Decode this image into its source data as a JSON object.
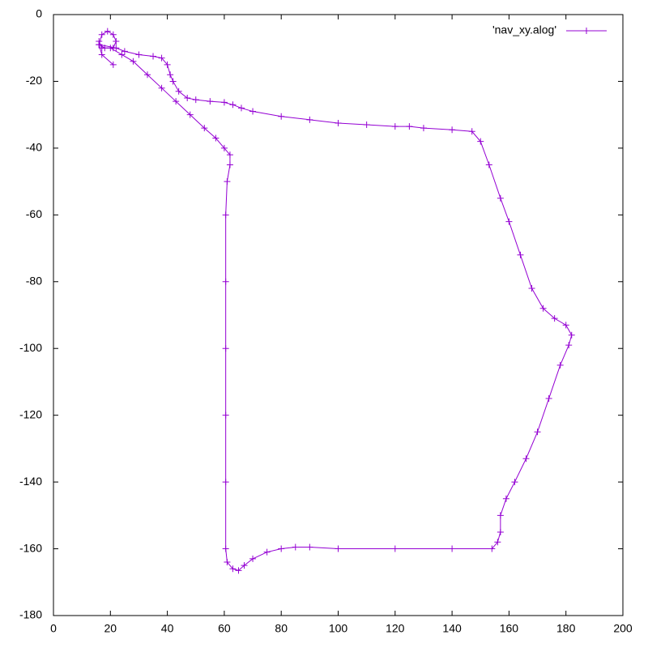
{
  "chart_data": {
    "type": "line",
    "x": [
      21,
      17,
      16,
      17,
      19,
      21,
      22,
      21,
      18,
      16,
      22,
      25,
      30,
      35,
      38,
      40,
      41,
      42,
      44,
      47,
      50,
      55,
      60,
      63,
      66,
      70,
      80,
      90,
      100,
      110,
      120,
      125,
      130,
      140,
      147,
      150,
      153,
      157,
      160,
      164,
      168,
      172,
      176,
      180,
      182,
      181,
      178,
      174,
      170,
      166,
      162,
      159,
      157,
      157,
      156,
      154,
      140,
      120,
      100,
      90,
      85,
      80,
      75,
      70,
      67,
      65,
      63,
      61,
      60.5,
      60.5,
      60.5,
      60.5,
      60.5,
      60.5,
      61,
      62,
      62,
      60,
      57,
      53,
      48,
      43,
      38,
      33,
      28,
      24,
      20,
      17,
      16
    ],
    "series": [
      {
        "name": "'nav_xy.alog'",
        "color": "#9400d3",
        "values": [
          -15,
          -12,
          -9,
          -6,
          -5,
          -6,
          -8,
          -10,
          -10,
          -9,
          -10,
          -11,
          -12,
          -12.5,
          -13,
          -15,
          -18,
          -20,
          -23,
          -25,
          -25.5,
          -26,
          -26.3,
          -27,
          -28,
          -29,
          -30.5,
          -31.5,
          -32.5,
          -33,
          -33.5,
          -33.5,
          -34,
          -34.5,
          -35,
          -38,
          -45,
          -55,
          -62,
          -72,
          -82,
          -88,
          -91,
          -93,
          -96,
          -99,
          -105,
          -115,
          -125,
          -133,
          -140,
          -145,
          -150,
          -155,
          -158,
          -160,
          -160,
          -160,
          -160,
          -159.5,
          -159.5,
          -160,
          -161,
          -163,
          -165,
          -166.5,
          -166,
          -164,
          -160,
          -140,
          -120,
          -100,
          -80,
          -60,
          -50,
          -45,
          -42,
          -40,
          -37,
          -34,
          -30,
          -26,
          -22,
          -18,
          -14,
          -12,
          -10,
          -10,
          -8
        ]
      }
    ],
    "xlim": [
      0,
      200
    ],
    "xticks": [
      0,
      20,
      40,
      60,
      80,
      100,
      120,
      140,
      160,
      180,
      200
    ],
    "ylim": [
      -180,
      0
    ],
    "yticks": [
      0,
      -20,
      -40,
      -60,
      -80,
      -100,
      -120,
      -140,
      -160,
      -180
    ],
    "legend": "top-right"
  }
}
